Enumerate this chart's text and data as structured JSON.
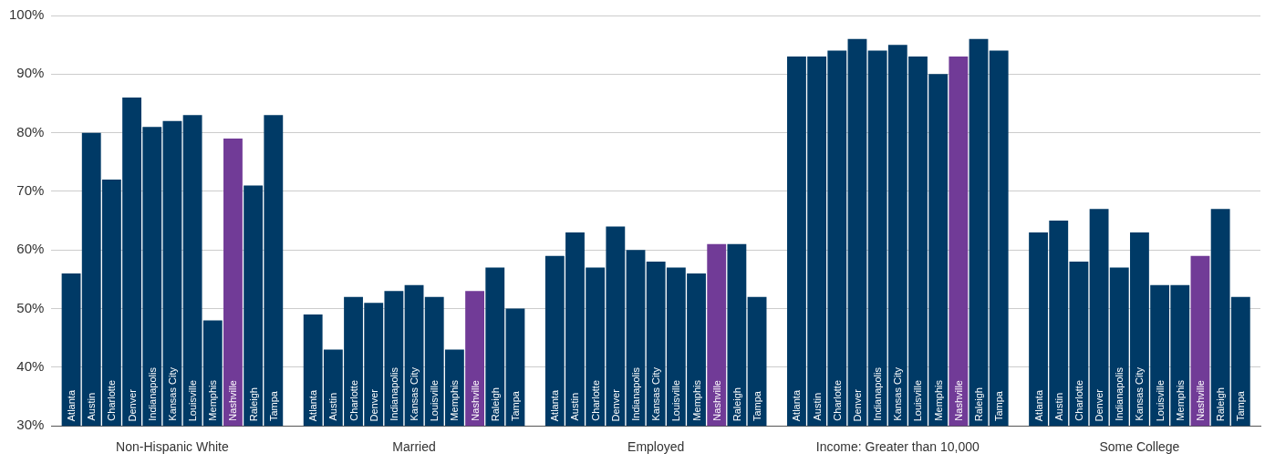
{
  "chart_data": {
    "type": "bar",
    "categories": [
      "Non-Hispanic White",
      "Married",
      "Employed",
      "Income: Greater than 10,000",
      "Some College"
    ],
    "series": [
      {
        "name": "Atlanta",
        "color": "#003a66",
        "values": [
          56,
          49,
          59,
          93,
          63
        ]
      },
      {
        "name": "Austin",
        "color": "#003a66",
        "values": [
          80,
          43,
          63,
          93,
          65
        ]
      },
      {
        "name": "Charlotte",
        "color": "#003a66",
        "values": [
          72,
          52,
          57,
          94,
          58
        ]
      },
      {
        "name": "Denver",
        "color": "#003a66",
        "values": [
          86,
          51,
          64,
          96,
          67
        ]
      },
      {
        "name": "Indianapolis",
        "color": "#003a66",
        "values": [
          81,
          53,
          60,
          94,
          57
        ]
      },
      {
        "name": "Kansas City",
        "color": "#003a66",
        "values": [
          82,
          54,
          58,
          95,
          63
        ]
      },
      {
        "name": "Louisville",
        "color": "#003a66",
        "values": [
          83,
          52,
          57,
          93,
          54
        ]
      },
      {
        "name": "Memphis",
        "color": "#003a66",
        "values": [
          48,
          43,
          56,
          90,
          54
        ]
      },
      {
        "name": "Nashville",
        "color": "#713b97",
        "values": [
          79,
          53,
          61,
          93,
          59
        ]
      },
      {
        "name": "Raleigh",
        "color": "#003a66",
        "values": [
          71,
          57,
          61,
          96,
          67
        ]
      },
      {
        "name": "Tampa",
        "color": "#003a66",
        "values": [
          83,
          50,
          52,
          94,
          52
        ]
      }
    ],
    "ylim": [
      30,
      100
    ],
    "yticks": [
      {
        "value": 30,
        "label": "30%"
      },
      {
        "value": 40,
        "label": "40%"
      },
      {
        "value": 50,
        "label": "50%"
      },
      {
        "value": 60,
        "label": "60%"
      },
      {
        "value": 70,
        "label": "70%"
      },
      {
        "value": 80,
        "label": "80%"
      },
      {
        "value": 90,
        "label": "90%"
      },
      {
        "value": 100,
        "label": "100%"
      }
    ],
    "grid": "y",
    "legend": false
  }
}
